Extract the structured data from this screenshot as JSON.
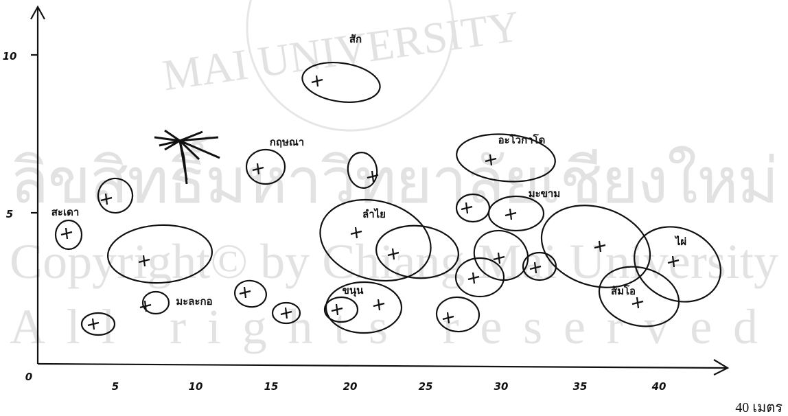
{
  "watermark": {
    "seal": "MAI UNIVERSITY",
    "thai": "ลิขสิทธิ์มหาวิทยาลัยเชียงใหม่",
    "copyright": "Copyright© by Chiang Mai University",
    "rights": "All rights reserved"
  },
  "axes": {
    "origin": "0",
    "x_ticks": [
      "5",
      "10",
      "15",
      "20",
      "25",
      "30",
      "35",
      "40"
    ],
    "y_ticks": [
      "5",
      "10"
    ],
    "unit": "40 เมตร"
  },
  "trees": [
    {
      "label": "สัก"
    },
    {
      "label": "กฤษณา"
    },
    {
      "label": "สะเดา"
    },
    {
      "label": "มะละกอ"
    },
    {
      "label": "ลำไย"
    },
    {
      "label": "ขนุน"
    },
    {
      "label": "อะโวกาโด"
    },
    {
      "label": "มะขาม"
    },
    {
      "label": "ไผ่"
    },
    {
      "label": "ส้มโอ"
    }
  ]
}
